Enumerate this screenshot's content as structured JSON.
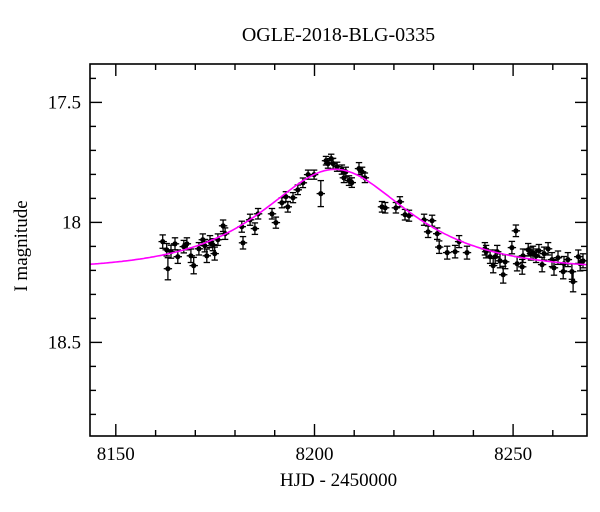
{
  "figure": {
    "title": "OGLE-2018-BLG-0335",
    "xlabel": "HJD - 2450000",
    "ylabel": "I magnitude"
  },
  "chart_data": {
    "type": "scatter",
    "title": "OGLE-2018-BLG-0335",
    "xlabel": "HJD - 2450000",
    "ylabel": "I magnitude",
    "xlim": [
      8143.5,
      8268.6
    ],
    "ylim": [
      17.34,
      18.89
    ],
    "y_axis_inverted_magnitude": true,
    "grid": false,
    "legend": null,
    "x_major_ticks": [
      8150,
      8200,
      8250
    ],
    "x_major_labels": [
      "8150",
      "8200",
      "8250"
    ],
    "x_minor_step": 10,
    "y_major_ticks": [
      17.5,
      18.0,
      18.5
    ],
    "y_major_labels": [
      "17.5",
      "18",
      "18.5"
    ],
    "y_minor_step": 0.1,
    "colors": {
      "data": "#000000",
      "model": "#ff00ff",
      "background": "#ffffff",
      "axis": "#000000"
    },
    "model": {
      "type": "paczynski-microlensing",
      "t0": 8205.2,
      "tE": 24.0,
      "u0": 0.85,
      "baseline_mag": 18.2,
      "peak_mag": 17.78
    },
    "points_format": [
      "hjd_minus_2450000",
      "I_mag",
      "mag_error"
    ],
    "points": [
      [
        8161.8,
        18.08,
        0.028
      ],
      [
        8162.8,
        18.114,
        0.026
      ],
      [
        8163.1,
        18.193,
        0.046
      ],
      [
        8163.9,
        18.122,
        0.027
      ],
      [
        8164.9,
        18.089,
        0.025
      ],
      [
        8165.6,
        18.143,
        0.028
      ],
      [
        8167.1,
        18.101,
        0.026
      ],
      [
        8167.9,
        18.089,
        0.025
      ],
      [
        8168.9,
        18.139,
        0.028
      ],
      [
        8169.6,
        18.18,
        0.034
      ],
      [
        8170.9,
        18.11,
        0.026
      ],
      [
        8171.9,
        18.072,
        0.024
      ],
      [
        8172.4,
        18.097,
        0.026
      ],
      [
        8172.9,
        18.139,
        0.028
      ],
      [
        8173.7,
        18.08,
        0.025
      ],
      [
        8174.4,
        18.093,
        0.025
      ],
      [
        8174.9,
        18.13,
        0.027
      ],
      [
        8175.7,
        18.072,
        0.024
      ],
      [
        8177.0,
        18.014,
        0.024
      ],
      [
        8177.5,
        18.047,
        0.024
      ],
      [
        8181.7,
        18.018,
        0.023
      ],
      [
        8182.0,
        18.085,
        0.026
      ],
      [
        8183.8,
        17.989,
        0.023
      ],
      [
        8185.0,
        18.026,
        0.024
      ],
      [
        8185.8,
        17.964,
        0.022
      ],
      [
        8189.3,
        17.964,
        0.022
      ],
      [
        8190.3,
        18.001,
        0.023
      ],
      [
        8191.8,
        17.918,
        0.021
      ],
      [
        8192.8,
        17.893,
        0.021
      ],
      [
        8193.3,
        17.935,
        0.022
      ],
      [
        8194.6,
        17.897,
        0.021
      ],
      [
        8195.8,
        17.864,
        0.02
      ],
      [
        8197.1,
        17.835,
        0.02
      ],
      [
        8198.4,
        17.801,
        0.019
      ],
      [
        8199.9,
        17.801,
        0.019
      ],
      [
        8201.6,
        17.88,
        0.054
      ],
      [
        8202.9,
        17.743,
        0.018
      ],
      [
        8203.4,
        17.755,
        0.019
      ],
      [
        8204.2,
        17.734,
        0.018
      ],
      [
        8204.7,
        17.755,
        0.022
      ],
      [
        8205.7,
        17.768,
        0.019
      ],
      [
        8206.9,
        17.78,
        0.019
      ],
      [
        8207.4,
        17.814,
        0.02
      ],
      [
        8207.9,
        17.789,
        0.019
      ],
      [
        8208.7,
        17.826,
        0.02
      ],
      [
        8209.4,
        17.834,
        0.02
      ],
      [
        8211.2,
        17.776,
        0.025
      ],
      [
        8212.0,
        17.789,
        0.019
      ],
      [
        8212.7,
        17.814,
        0.02
      ],
      [
        8217.0,
        17.935,
        0.022
      ],
      [
        8217.8,
        17.939,
        0.022
      ],
      [
        8220.5,
        17.939,
        0.022
      ],
      [
        8221.5,
        17.914,
        0.021
      ],
      [
        8222.8,
        17.968,
        0.022
      ],
      [
        8223.8,
        17.972,
        0.023
      ],
      [
        8227.6,
        17.989,
        0.023
      ],
      [
        8228.6,
        18.039,
        0.024
      ],
      [
        8229.6,
        17.993,
        0.023
      ],
      [
        8230.9,
        18.047,
        0.024
      ],
      [
        8231.4,
        18.103,
        0.026
      ],
      [
        8233.4,
        18.126,
        0.027
      ],
      [
        8235.4,
        18.122,
        0.026
      ],
      [
        8236.4,
        18.08,
        0.025
      ],
      [
        8238.4,
        18.126,
        0.027
      ],
      [
        8242.9,
        18.11,
        0.026
      ],
      [
        8243.2,
        18.122,
        0.026
      ],
      [
        8244.2,
        18.143,
        0.028
      ],
      [
        8245.0,
        18.18,
        0.03
      ],
      [
        8245.5,
        18.143,
        0.028
      ],
      [
        8246.0,
        18.122,
        0.026
      ],
      [
        8246.7,
        18.16,
        0.029
      ],
      [
        8247.5,
        18.218,
        0.035
      ],
      [
        8248.0,
        18.164,
        0.029
      ],
      [
        8249.7,
        18.105,
        0.026
      ],
      [
        8250.7,
        18.035,
        0.024
      ],
      [
        8251.0,
        18.172,
        0.03
      ],
      [
        8252.3,
        18.185,
        0.031
      ],
      [
        8252.5,
        18.139,
        0.028
      ],
      [
        8253.8,
        18.114,
        0.026
      ],
      [
        8254.5,
        18.13,
        0.027
      ],
      [
        8255.0,
        18.126,
        0.027
      ],
      [
        8255.8,
        18.139,
        0.028
      ],
      [
        8256.5,
        18.118,
        0.026
      ],
      [
        8257.3,
        18.176,
        0.03
      ],
      [
        8257.8,
        18.13,
        0.027
      ],
      [
        8258.8,
        18.11,
        0.026
      ],
      [
        8259.8,
        18.155,
        0.029
      ],
      [
        8260.3,
        18.189,
        0.031
      ],
      [
        8261.3,
        18.147,
        0.028
      ],
      [
        8262.6,
        18.205,
        0.03
      ],
      [
        8262.8,
        18.172,
        0.03
      ],
      [
        8263.8,
        18.155,
        0.029
      ],
      [
        8264.8,
        18.205,
        0.032
      ],
      [
        8265.1,
        18.247,
        0.042
      ],
      [
        8266.4,
        18.143,
        0.028
      ],
      [
        8266.9,
        18.172,
        0.03
      ],
      [
        8267.6,
        18.16,
        0.029
      ]
    ]
  }
}
